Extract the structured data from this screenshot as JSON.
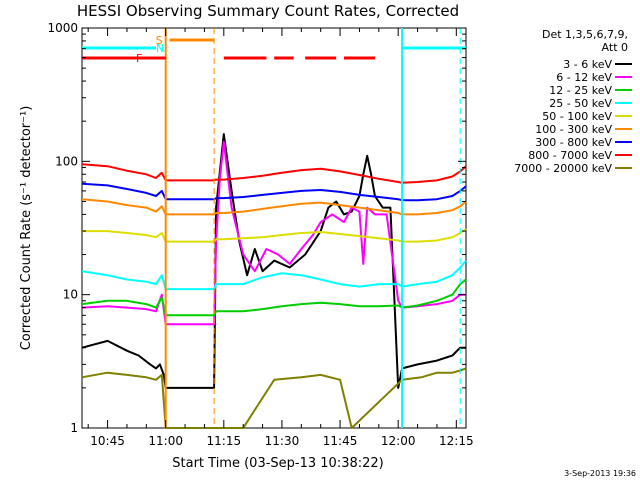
{
  "chart_data": {
    "type": "line",
    "title": "HESSI Observing Summary Count Rates, Corrected",
    "xlabel": "Start Time (03-Sep-13 10:38:22)",
    "ylabel": "Corrected Count Rate (s⁻¹ detector⁻¹)",
    "y_scale": "log",
    "ylim": [
      1,
      1000
    ],
    "xlim_minutes": [
      38.4,
      137.5
    ],
    "y_ticks": [
      {
        "label": "1",
        "value": 1
      },
      {
        "label": "10",
        "value": 10
      },
      {
        "label": "100",
        "value": 100
      },
      {
        "label": "1000",
        "value": 1000
      }
    ],
    "x_ticks": [
      {
        "label": "10:45",
        "value": 45
      },
      {
        "label": "11:00",
        "value": 60
      },
      {
        "label": "11:15",
        "value": 75
      },
      {
        "label": "11:30",
        "value": 90
      },
      {
        "label": "11:45",
        "value": 105
      },
      {
        "label": "12:00",
        "value": 120
      },
      {
        "label": "12:15",
        "value": 135
      }
    ],
    "legend": {
      "header1": "Det 1,3,5,6,7,9,",
      "header2": "Att 0",
      "position": "right"
    },
    "series": [
      {
        "name": "3 - 6 keV",
        "color": "#000000",
        "x": [
          38.4,
          45,
          50,
          53,
          56,
          57.5,
          58.5,
          59.5,
          60,
          72.5,
          73,
          75,
          77,
          79,
          81,
          83,
          85,
          88,
          92,
          96,
          100,
          102,
          104,
          106,
          108,
          110,
          111,
          112,
          113,
          114,
          116,
          118,
          120,
          121,
          125,
          130,
          134,
          136,
          137.5
        ],
        "y": [
          4,
          4.5,
          3.8,
          3.5,
          3,
          2.8,
          3,
          2.5,
          2,
          2,
          45,
          160,
          60,
          25,
          14,
          22,
          15,
          18,
          16,
          20,
          30,
          45,
          50,
          40,
          42,
          55,
          80,
          110,
          80,
          55,
          45,
          45,
          2,
          2.8,
          3,
          3.2,
          3.5,
          4,
          4
        ]
      },
      {
        "name": "6 - 12 keV",
        "color": "#ff00ff",
        "x": [
          38.4,
          45,
          50,
          55,
          57.5,
          59,
          60,
          72.5,
          73,
          74,
          75,
          77,
          80,
          83,
          86,
          89,
          92,
          95,
          98,
          100,
          103,
          106,
          108,
          110,
          111,
          112,
          114,
          117,
          120,
          121,
          125,
          130,
          134,
          136,
          137.5
        ],
        "y": [
          8,
          8.2,
          8,
          7.8,
          7.5,
          10,
          6,
          6,
          25,
          75,
          140,
          45,
          20,
          15,
          22,
          20,
          17,
          22,
          28,
          35,
          40,
          35,
          45,
          42,
          17,
          45,
          40,
          40,
          9,
          8,
          8.2,
          8.5,
          9,
          10,
          10
        ]
      },
      {
        "name": "12 - 25 keV",
        "color": "#00cc00",
        "x": [
          38.4,
          45,
          50,
          55,
          57.5,
          59,
          60,
          72.5,
          73,
          75,
          80,
          85,
          90,
          95,
          100,
          105,
          110,
          115,
          120,
          121,
          125,
          130,
          134,
          136,
          137.5
        ],
        "y": [
          8.5,
          9,
          9,
          8.5,
          8,
          9.5,
          7,
          7,
          7.5,
          7.5,
          7.5,
          7.8,
          8.2,
          8.5,
          8.7,
          8.5,
          8.2,
          8.2,
          8.3,
          8,
          8.3,
          9,
          10,
          12,
          13
        ]
      },
      {
        "name": "25 - 50 keV",
        "color": "#00ffff",
        "x": [
          38.4,
          45,
          50,
          55,
          57.5,
          59,
          60,
          72.5,
          73,
          75,
          80,
          85,
          90,
          95,
          100,
          105,
          110,
          115,
          120,
          121,
          125,
          130,
          134,
          136,
          137.5
        ],
        "y": [
          15,
          14,
          13,
          12.5,
          12,
          14,
          11,
          11,
          12,
          12,
          12,
          13.5,
          14.5,
          14,
          13,
          12,
          11.5,
          12,
          12,
          11.5,
          12,
          12.5,
          14,
          16,
          18
        ]
      },
      {
        "name": "50 - 100 keV",
        "color": "#dddd00",
        "x": [
          38.4,
          45,
          50,
          55,
          57.5,
          59,
          60,
          72.5,
          73,
          75,
          80,
          85,
          90,
          95,
          100,
          105,
          110,
          115,
          120,
          121,
          125,
          130,
          134,
          136,
          137.5
        ],
        "y": [
          30,
          30,
          29,
          28,
          27,
          29,
          25,
          25,
          26,
          26,
          26.5,
          27,
          28,
          29,
          29.5,
          28.5,
          27.5,
          26.5,
          25.5,
          25,
          25,
          25.5,
          27,
          29,
          31
        ]
      },
      {
        "name": "100 - 300 keV",
        "color": "#ff8800",
        "x": [
          38.4,
          45,
          50,
          55,
          57.5,
          59,
          60,
          72.5,
          73,
          75,
          80,
          85,
          90,
          95,
          100,
          105,
          110,
          115,
          120,
          121,
          125,
          130,
          134,
          136,
          137.5
        ],
        "y": [
          52,
          50,
          47,
          45,
          42,
          46,
          40,
          40,
          41,
          41,
          42,
          44,
          46,
          48,
          49,
          47,
          45,
          43,
          41,
          40,
          40,
          41,
          43,
          46,
          50
        ]
      },
      {
        "name": "300 - 800 keV",
        "color": "#0000ff",
        "x": [
          38.4,
          45,
          50,
          55,
          57.5,
          59,
          60,
          72.5,
          73,
          75,
          80,
          85,
          90,
          95,
          100,
          105,
          110,
          115,
          120,
          121,
          125,
          130,
          134,
          136,
          137.5
        ],
        "y": [
          68,
          66,
          62,
          58,
          55,
          60,
          52,
          52,
          53,
          53,
          54,
          56,
          58,
          60,
          61,
          59,
          56,
          54,
          52,
          51,
          51,
          52,
          55,
          60,
          65
        ]
      },
      {
        "name": "800 - 7000 keV",
        "color": "#ff0000",
        "x": [
          38.4,
          45,
          50,
          55,
          57.5,
          59,
          60,
          72.5,
          73,
          75,
          80,
          85,
          90,
          95,
          100,
          105,
          110,
          115,
          120,
          121,
          125,
          130,
          134,
          136,
          137.5
        ],
        "y": [
          95,
          92,
          85,
          80,
          75,
          82,
          72,
          72,
          73,
          73,
          75,
          78,
          82,
          86,
          88,
          84,
          79,
          74,
          70,
          69,
          70,
          72,
          77,
          84,
          92
        ]
      },
      {
        "name": "7000 - 20000 keV",
        "color": "#808000",
        "x": [
          38.4,
          45,
          50,
          55,
          57.5,
          59,
          60,
          80,
          88,
          95,
          100,
          105,
          108,
          121,
          126,
          130,
          134,
          136,
          137.5
        ],
        "y": [
          2.4,
          2.6,
          2.5,
          2.4,
          2.3,
          2.5,
          1,
          1,
          2.3,
          2.4,
          2.5,
          2.3,
          1,
          2.3,
          2.4,
          2.6,
          2.6,
          2.7,
          2.8
        ]
      }
    ],
    "annotations": {
      "night_windows": [
        {
          "label": "S",
          "start": 60,
          "end": 72.5
        },
        {
          "label": "N",
          "start": 121,
          "end": 136
        }
      ],
      "flare_flag": {
        "label": "F",
        "segments": [
          [
            38.4,
            60
          ],
          [
            75,
            86
          ],
          [
            88,
            93
          ],
          [
            96,
            104
          ],
          [
            106,
            114
          ]
        ]
      },
      "saa_flag": {
        "label": "S",
        "segments": [
          [
            61,
            72.5
          ]
        ]
      },
      "night_flag": {
        "label": "N",
        "segments": [
          [
            38.4,
            57.5
          ],
          [
            121,
            137.5
          ]
        ]
      }
    }
  },
  "footer_stamp": "3-Sep-2013 19:36"
}
